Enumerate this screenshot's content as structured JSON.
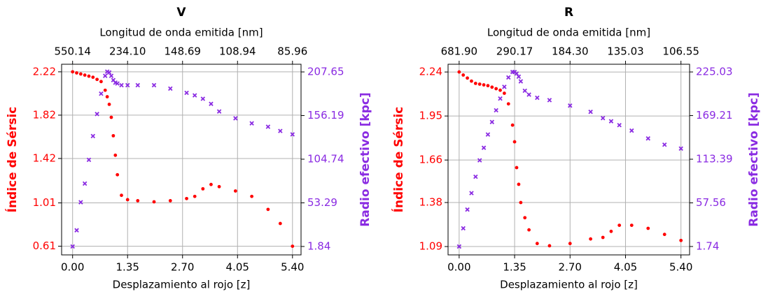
{
  "chart_data": [
    {
      "type": "scatter",
      "title": "V",
      "xlabel": "Desplazamiento al rojo [z]",
      "x2label": "Longitud de onda emitida [nm]",
      "ylabel": "Índice de Sérsic",
      "y2label": "Radio efectivo [kpc]",
      "ylabel_color": "#ff0000",
      "y2label_color": "#8a2be2",
      "grid": true,
      "xlim": [
        -0.27,
        5.61
      ],
      "ylim": [
        0.53,
        2.29
      ],
      "y2lim": [
        -8.1,
        216.7
      ],
      "xticks": [
        {
          "value": 0,
          "label": "0.00"
        },
        {
          "value": 1.35,
          "label": "1.35"
        },
        {
          "value": 2.7,
          "label": "2.70"
        },
        {
          "value": 4.05,
          "label": "4.05"
        },
        {
          "value": 5.4,
          "label": "5.40"
        }
      ],
      "x2ticks": [
        550.14,
        {
          "value": 234.1,
          "label": "234.10"
        },
        148.69,
        108.94,
        85.96
      ],
      "yticks": [
        0.61,
        1.01,
        1.42,
        1.82,
        2.22
      ],
      "y2ticks": [
        1.84,
        53.29,
        104.74,
        156.19,
        207.65
      ],
      "x": [
        0,
        0.1,
        0.2,
        0.3,
        0.4,
        0.5,
        0.6,
        0.7,
        0.8,
        0.85,
        0.9,
        0.95,
        1.0,
        1.05,
        1.1,
        1.2,
        1.35,
        1.6,
        2.0,
        2.4,
        2.8,
        3.0,
        3.2,
        3.4,
        3.6,
        4.0,
        4.4,
        4.8,
        5.1,
        5.4
      ],
      "series": [
        {
          "color": "#ff0000",
          "marker": "o",
          "values": [
            2.22,
            2.21,
            2.2,
            2.19,
            2.18,
            2.17,
            2.15,
            2.13,
            2.05,
            1.99,
            1.92,
            1.8,
            1.63,
            1.45,
            1.27,
            1.08,
            1.04,
            1.03,
            1.02,
            1.03,
            1.05,
            1.07,
            1.14,
            1.18,
            1.16,
            1.12,
            1.07,
            0.95,
            0.82,
            0.61
          ]
        },
        {
          "color": "#8a2be2",
          "marker": "x",
          "axis": "y2",
          "values": [
            1.84,
            20.9,
            54,
            76,
            104,
            132,
            158,
            182,
            203,
            208,
            207,
            203,
            198,
            195,
            194,
            192,
            192,
            192,
            192,
            188,
            183,
            180,
            176,
            170,
            161,
            153,
            147,
            143,
            138,
            134
          ]
        }
      ]
    },
    {
      "type": "scatter",
      "title": "R",
      "xlabel": "Desplazamiento al rojo [z]",
      "x2label": "Longitud de onda emitida [nm]",
      "ylabel": "Índice de Sérsic",
      "y2label": "Radio efectivo [kpc]",
      "ylabel_color": "#ff0000",
      "y2label_color": "#8a2be2",
      "grid": true,
      "xlim": [
        -0.27,
        5.61
      ],
      "ylim": [
        1.035,
        2.291
      ],
      "y2lim": [
        -9.0,
        234.9
      ],
      "xticks": [
        {
          "value": 0,
          "label": "0.00"
        },
        {
          "value": 1.35,
          "label": "1.35"
        },
        {
          "value": 2.7,
          "label": "2.70"
        },
        {
          "value": 4.05,
          "label": "4.05"
        },
        {
          "value": 5.4,
          "label": "5.40"
        }
      ],
      "x2ticks": [
        {
          "value": 681.9,
          "label": "681.90"
        },
        290.17,
        {
          "value": 184.3,
          "label": "184.30"
        },
        135.03,
        106.55
      ],
      "yticks": [
        1.09,
        1.38,
        1.66,
        1.95,
        2.24
      ],
      "y2ticks": [
        1.74,
        57.56,
        113.39,
        169.21,
        225.03
      ],
      "x": [
        0,
        0.1,
        0.2,
        0.3,
        0.4,
        0.5,
        0.6,
        0.7,
        0.8,
        0.9,
        1.0,
        1.1,
        1.2,
        1.3,
        1.35,
        1.4,
        1.45,
        1.5,
        1.6,
        1.7,
        1.9,
        2.2,
        2.7,
        3.2,
        3.5,
        3.7,
        3.9,
        4.2,
        4.6,
        5.0,
        5.4
      ],
      "series": [
        {
          "color": "#ff0000",
          "marker": "o",
          "values": [
            2.24,
            2.22,
            2.2,
            2.18,
            2.165,
            2.16,
            2.155,
            2.15,
            2.14,
            2.13,
            2.12,
            2.1,
            2.03,
            1.89,
            1.78,
            1.61,
            1.5,
            1.38,
            1.28,
            1.2,
            1.11,
            1.095,
            1.11,
            1.14,
            1.15,
            1.19,
            1.23,
            1.23,
            1.21,
            1.17,
            1.13
          ]
        },
        {
          "color": "#8a2be2",
          "marker": "x",
          "axis": "y2",
          "values": [
            1.74,
            25,
            49,
            70,
            91,
            112,
            128,
            145,
            161,
            176,
            191,
            206,
            218,
            225,
            225,
            223,
            219,
            213,
            201,
            196,
            192,
            189,
            182,
            174,
            166,
            162,
            157,
            150,
            140,
            132,
            127
          ]
        }
      ]
    }
  ]
}
